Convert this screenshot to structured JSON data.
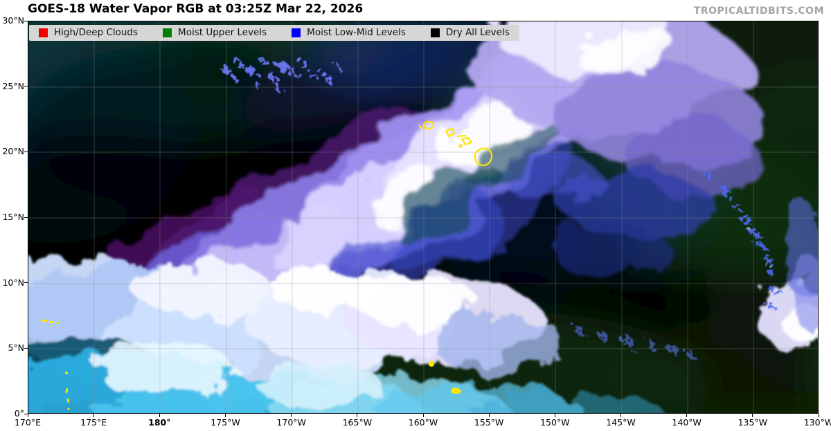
{
  "header": {
    "title": "GOES-18 Water Vapor RGB at 03:25Z Mar 22, 2026",
    "watermark": "TROPICALTIDBITS.COM"
  },
  "legend": {
    "items": [
      {
        "label": "High/Deep Clouds",
        "color": "#f10000"
      },
      {
        "label": "Moist Upper Levels",
        "color": "#008000"
      },
      {
        "label": "Moist Low-Mid Levels",
        "color": "#0000ff"
      },
      {
        "label": "Dry All Levels",
        "color": "#000000"
      }
    ],
    "background": "#d6d6d6"
  },
  "map": {
    "lat_ticks": [
      "30°N",
      "25°N",
      "20°N",
      "15°N",
      "10°N",
      "5°N",
      "0°"
    ],
    "lon_ticks": [
      {
        "text": "170°E"
      },
      {
        "text": "175°E"
      },
      {
        "text": "180°",
        "bold": true
      },
      {
        "text": "175°W"
      },
      {
        "text": "170°W"
      },
      {
        "text": "165°W"
      },
      {
        "text": "160°W"
      },
      {
        "text": "155°W"
      },
      {
        "text": "150°W"
      },
      {
        "text": "145°W"
      },
      {
        "text": "140°W"
      },
      {
        "text": "135°W"
      },
      {
        "text": "130°W"
      }
    ],
    "coastline_color": "#ffe600",
    "satellite_channel": "Water Vapor RGB",
    "satellite_name": "GOES-18"
  }
}
